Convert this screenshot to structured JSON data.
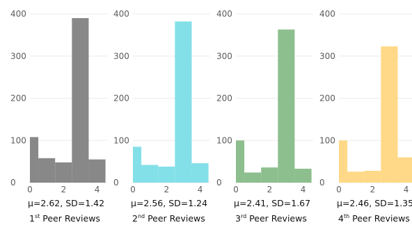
{
  "chart_data": [
    {
      "type": "bar",
      "bins": [
        [
          0,
          0.5
        ],
        [
          0.5,
          1.5
        ],
        [
          1.5,
          2.5
        ],
        [
          2.5,
          3.5
        ],
        [
          3.5,
          4.5
        ]
      ],
      "values": [
        108,
        58,
        48,
        390,
        55
      ],
      "color": "#888888",
      "stats": "μ=2.62, SD=1.42",
      "label_ord": "1",
      "label_sup": "st",
      "label_rest": " Peer Reviews",
      "ylim": [
        0,
        400
      ],
      "yticks": [
        "0",
        "100",
        "200",
        "300",
        "400"
      ],
      "xticks": [
        "0",
        "2",
        "4"
      ],
      "grid": true
    },
    {
      "type": "bar",
      "bins": [
        [
          0,
          0.5
        ],
        [
          0.5,
          1.5
        ],
        [
          1.5,
          2.5
        ],
        [
          2.5,
          3.5
        ],
        [
          3.5,
          4.5
        ]
      ],
      "values": [
        85,
        42,
        38,
        382,
        46
      ],
      "color": "#84e0e8",
      "stats": "μ=2.56, SD=1.24",
      "label_ord": "2",
      "label_sup": "nd",
      "label_rest": " Peer Reviews",
      "ylim": [
        0,
        400
      ],
      "yticks": [
        "0",
        "100",
        "200",
        "300",
        "400"
      ],
      "xticks": [
        "0",
        "2",
        "4"
      ],
      "grid": true
    },
    {
      "type": "bar",
      "bins": [
        [
          0,
          0.5
        ],
        [
          0.5,
          1.5
        ],
        [
          1.5,
          2.5
        ],
        [
          2.5,
          3.5
        ],
        [
          3.5,
          4.5
        ]
      ],
      "values": [
        100,
        24,
        36,
        363,
        33
      ],
      "color": "#8dbf8e",
      "stats": "μ=2.41, SD=1.67",
      "label_ord": "3",
      "label_sup": "rd",
      "label_rest": " Peer Reviews",
      "ylim": [
        0,
        400
      ],
      "yticks": [
        "0",
        "100",
        "200",
        "300",
        "400"
      ],
      "xticks": [
        "0",
        "2",
        "4"
      ],
      "grid": true
    },
    {
      "type": "bar",
      "bins": [
        [
          0,
          0.5
        ],
        [
          0.5,
          1.5
        ],
        [
          1.5,
          2.5
        ],
        [
          2.5,
          3.5
        ],
        [
          3.5,
          4.5
        ]
      ],
      "values": [
        100,
        26,
        28,
        323,
        60
      ],
      "color": "#ffd987",
      "stats": "μ=2.46, SD=1.35",
      "label_ord": "4",
      "label_sup": "th",
      "label_rest": " Peer Reviews",
      "ylim": [
        0,
        400
      ],
      "yticks": [
        "0",
        "100",
        "200",
        "300",
        "400"
      ],
      "xticks": [
        "0",
        "2",
        "4"
      ],
      "grid": true
    }
  ]
}
